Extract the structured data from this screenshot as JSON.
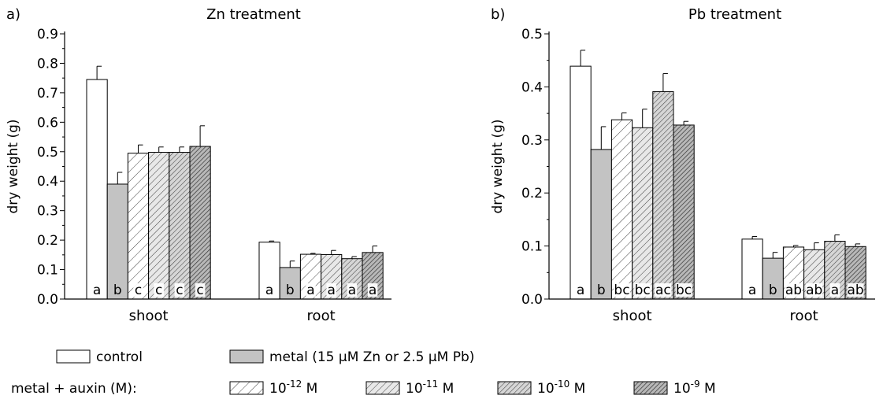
{
  "chart_data": [
    {
      "type": "bar",
      "panel": "a)",
      "title": "Zn treatment",
      "xlabel": "",
      "ylabel": "dry weight (g)",
      "ylim": [
        0,
        0.9
      ],
      "yticks": [
        "0.0",
        "0.1",
        "0.2",
        "0.3",
        "0.4",
        "0.5",
        "0.6",
        "0.7",
        "0.8",
        "0.9"
      ],
      "categories": [
        "shoot",
        "root"
      ],
      "series": [
        {
          "name": "control",
          "values": [
            0.745,
            0.193
          ],
          "errors": [
            0.045,
            0.004
          ],
          "letters": [
            "a",
            "a"
          ]
        },
        {
          "name": "metal (15 µM Zn or 2.5 µM Pb)",
          "values": [
            0.39,
            0.107
          ],
          "errors": [
            0.04,
            0.022
          ],
          "letters": [
            "b",
            "b"
          ]
        },
        {
          "name": "10-12 M",
          "values": [
            0.495,
            0.152
          ],
          "errors": [
            0.028,
            0.003
          ],
          "letters": [
            "c",
            "a"
          ]
        },
        {
          "name": "10-11 M",
          "values": [
            0.498,
            0.151
          ],
          "errors": [
            0.018,
            0.014
          ],
          "letters": [
            "c",
            "a"
          ]
        },
        {
          "name": "10-10 M",
          "values": [
            0.498,
            0.137
          ],
          "errors": [
            0.018,
            0.007
          ],
          "letters": [
            "c",
            "a"
          ]
        },
        {
          "name": "10-9 M",
          "values": [
            0.518,
            0.158
          ],
          "errors": [
            0.07,
            0.022
          ],
          "letters": [
            "c",
            "a"
          ]
        }
      ]
    },
    {
      "type": "bar",
      "panel": "b)",
      "title": "Pb treatment",
      "xlabel": "",
      "ylabel": "dry weight (g)",
      "ylim": [
        0,
        0.5
      ],
      "yticks": [
        "0.0",
        "0.1",
        "0.2",
        "0.3",
        "0.4",
        "0.5"
      ],
      "categories": [
        "shoot",
        "root"
      ],
      "series": [
        {
          "name": "control",
          "values": [
            0.439,
            0.113
          ],
          "errors": [
            0.03,
            0.005
          ],
          "letters": [
            "a",
            "a"
          ]
        },
        {
          "name": "metal (15 µM Zn or 2.5 µM Pb)",
          "values": [
            0.282,
            0.077
          ],
          "errors": [
            0.043,
            0.011
          ],
          "letters": [
            "b",
            "b"
          ]
        },
        {
          "name": "10-12 M",
          "values": [
            0.338,
            0.098
          ],
          "errors": [
            0.013,
            0.003
          ],
          "letters": [
            "bc",
            "ab"
          ]
        },
        {
          "name": "10-11 M",
          "values": [
            0.323,
            0.093
          ],
          "errors": [
            0.035,
            0.013
          ],
          "letters": [
            "bc",
            "ab"
          ]
        },
        {
          "name": "10-10 M",
          "values": [
            0.391,
            0.109
          ],
          "errors": [
            0.034,
            0.012
          ],
          "letters": [
            "ac",
            "a"
          ]
        },
        {
          "name": "10-9 M",
          "values": [
            0.328,
            0.099
          ],
          "errors": [
            0.007,
            0.005
          ],
          "letters": [
            "bc",
            "ab"
          ]
        }
      ]
    }
  ],
  "legend": {
    "control_label": "control",
    "metal_label": "metal (15 µM Zn or 2.5 µM Pb)",
    "auxin_prefix": "metal + auxin (M):",
    "auxin_items": [
      {
        "base": "10",
        "exp": "-12",
        "unit": " M"
      },
      {
        "base": "10",
        "exp": "-11",
        "unit": " M"
      },
      {
        "base": "10",
        "exp": "-10",
        "unit": " M"
      },
      {
        "base": "10",
        "exp": "-9",
        "unit": " M"
      }
    ]
  }
}
